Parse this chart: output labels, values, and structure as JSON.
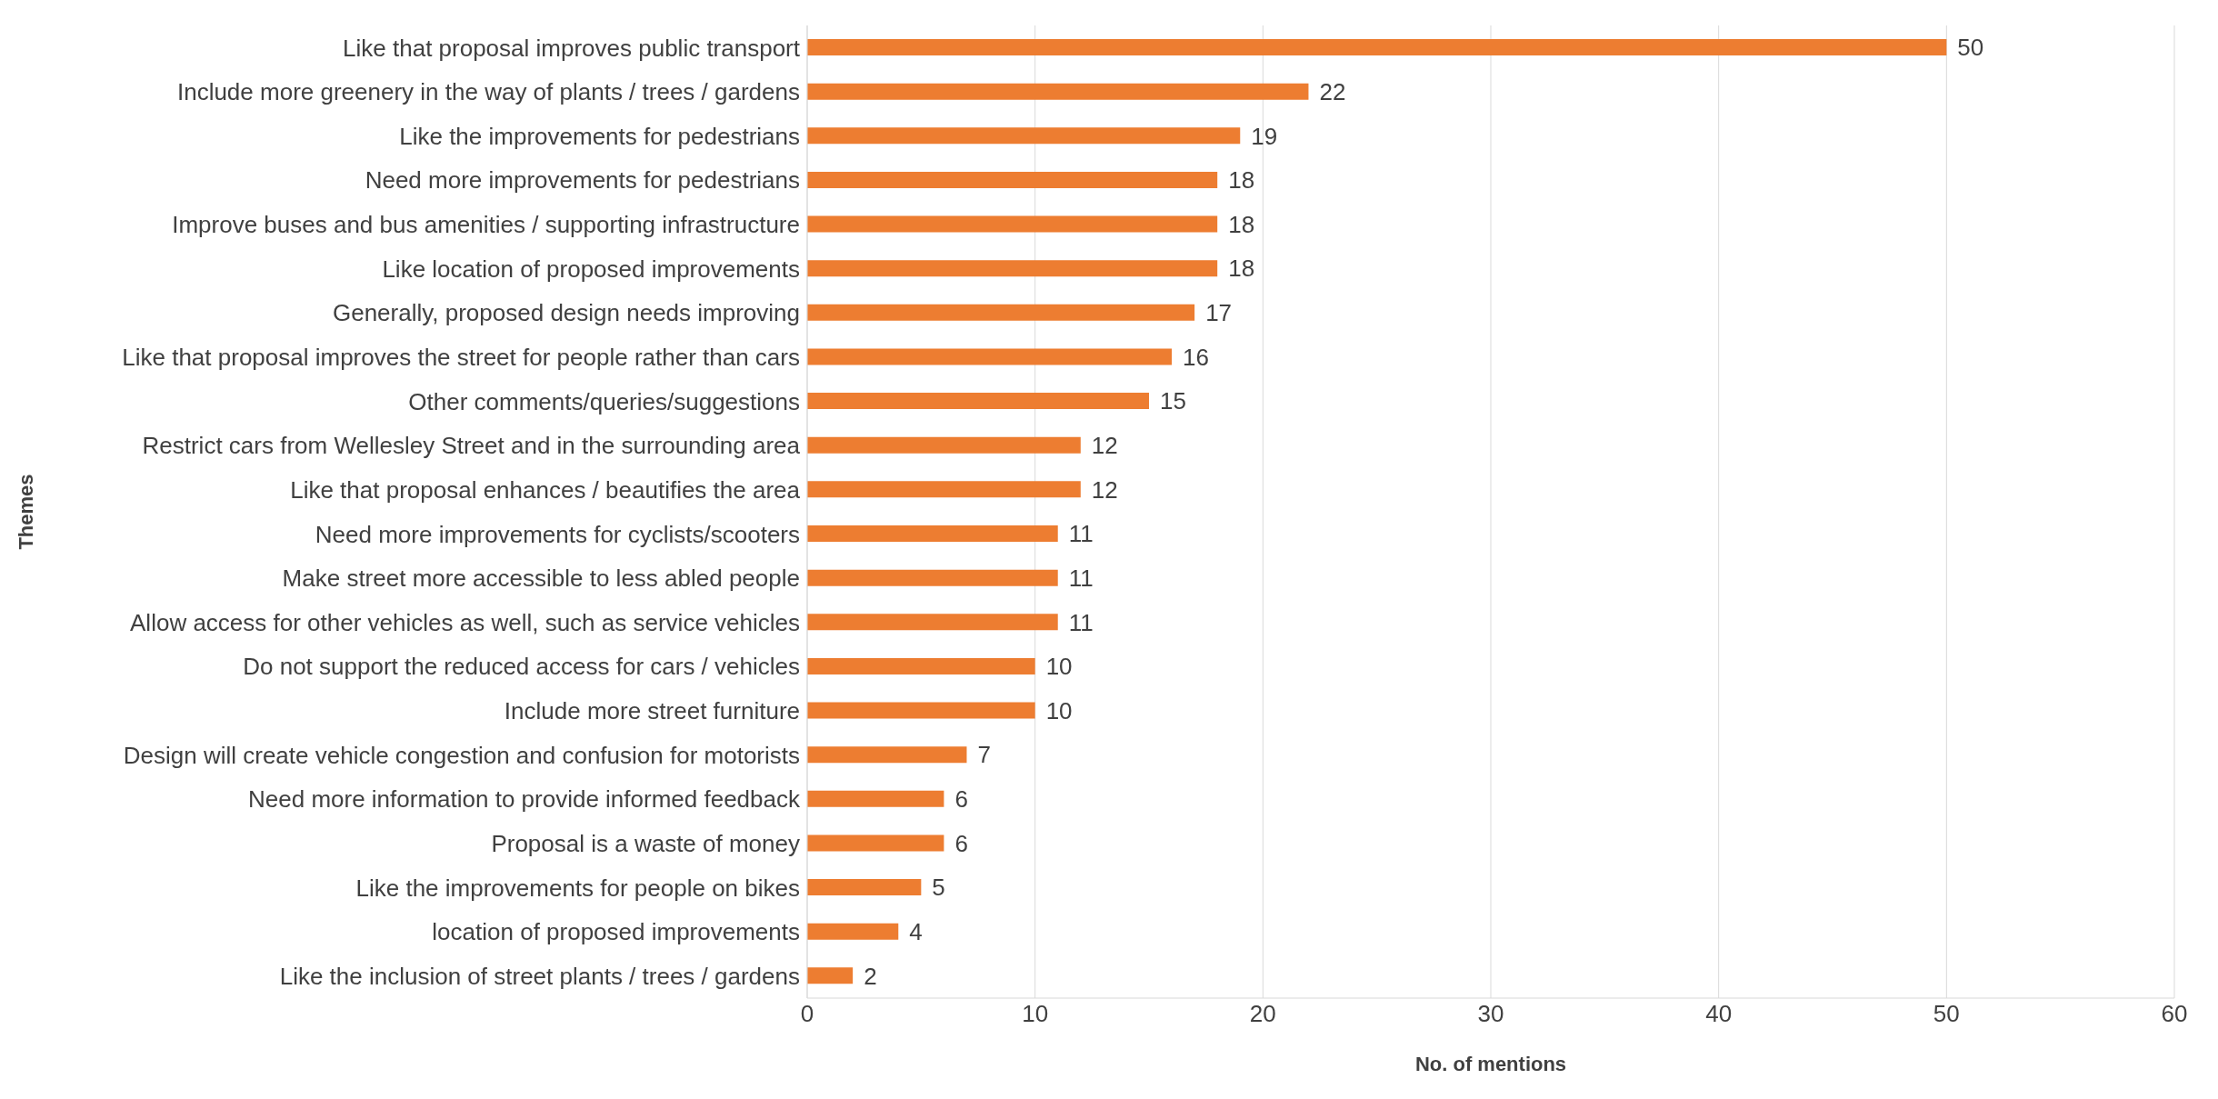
{
  "chart_data": {
    "type": "bar",
    "orientation": "horizontal",
    "xlabel": "No. of mentions",
    "ylabel": "Themes",
    "categories": [
      "Like that proposal improves public transport",
      "Include more greenery in the way of plants / trees / gardens",
      "Like the improvements for pedestrians",
      "Need more improvements for pedestrians",
      "Improve buses and bus amenities / supporting infrastructure",
      "Like location of proposed improvements",
      "Generally, proposed design needs improving",
      "Like that proposal improves the street for people rather than cars",
      "Other comments/queries/suggestions",
      "Restrict cars from Wellesley Street and in the surrounding area",
      "Like that proposal enhances / beautifies the area",
      "Need more improvements for cyclists/scooters",
      "Make street more accessible to less abled people",
      "Allow access for other vehicles as well, such as service vehicles",
      "Do not support the reduced access for cars / vehicles",
      "Include more street furniture",
      "Design will create vehicle congestion and confusion for motorists",
      "Need more information to provide informed feedback",
      "Proposal is a waste of money",
      "Like the improvements for people on bikes",
      "location of proposed improvements",
      "Like the inclusion of street plants / trees / gardens"
    ],
    "values": [
      50,
      22,
      19,
      18,
      18,
      18,
      17,
      16,
      15,
      12,
      12,
      11,
      11,
      11,
      10,
      10,
      7,
      6,
      6,
      5,
      4,
      2
    ],
    "color": "#ed7d31",
    "xlim": [
      0,
      60
    ],
    "xticks": [
      0,
      10,
      20,
      30,
      40,
      50,
      60
    ],
    "grid": "x",
    "data_labels": true
  }
}
